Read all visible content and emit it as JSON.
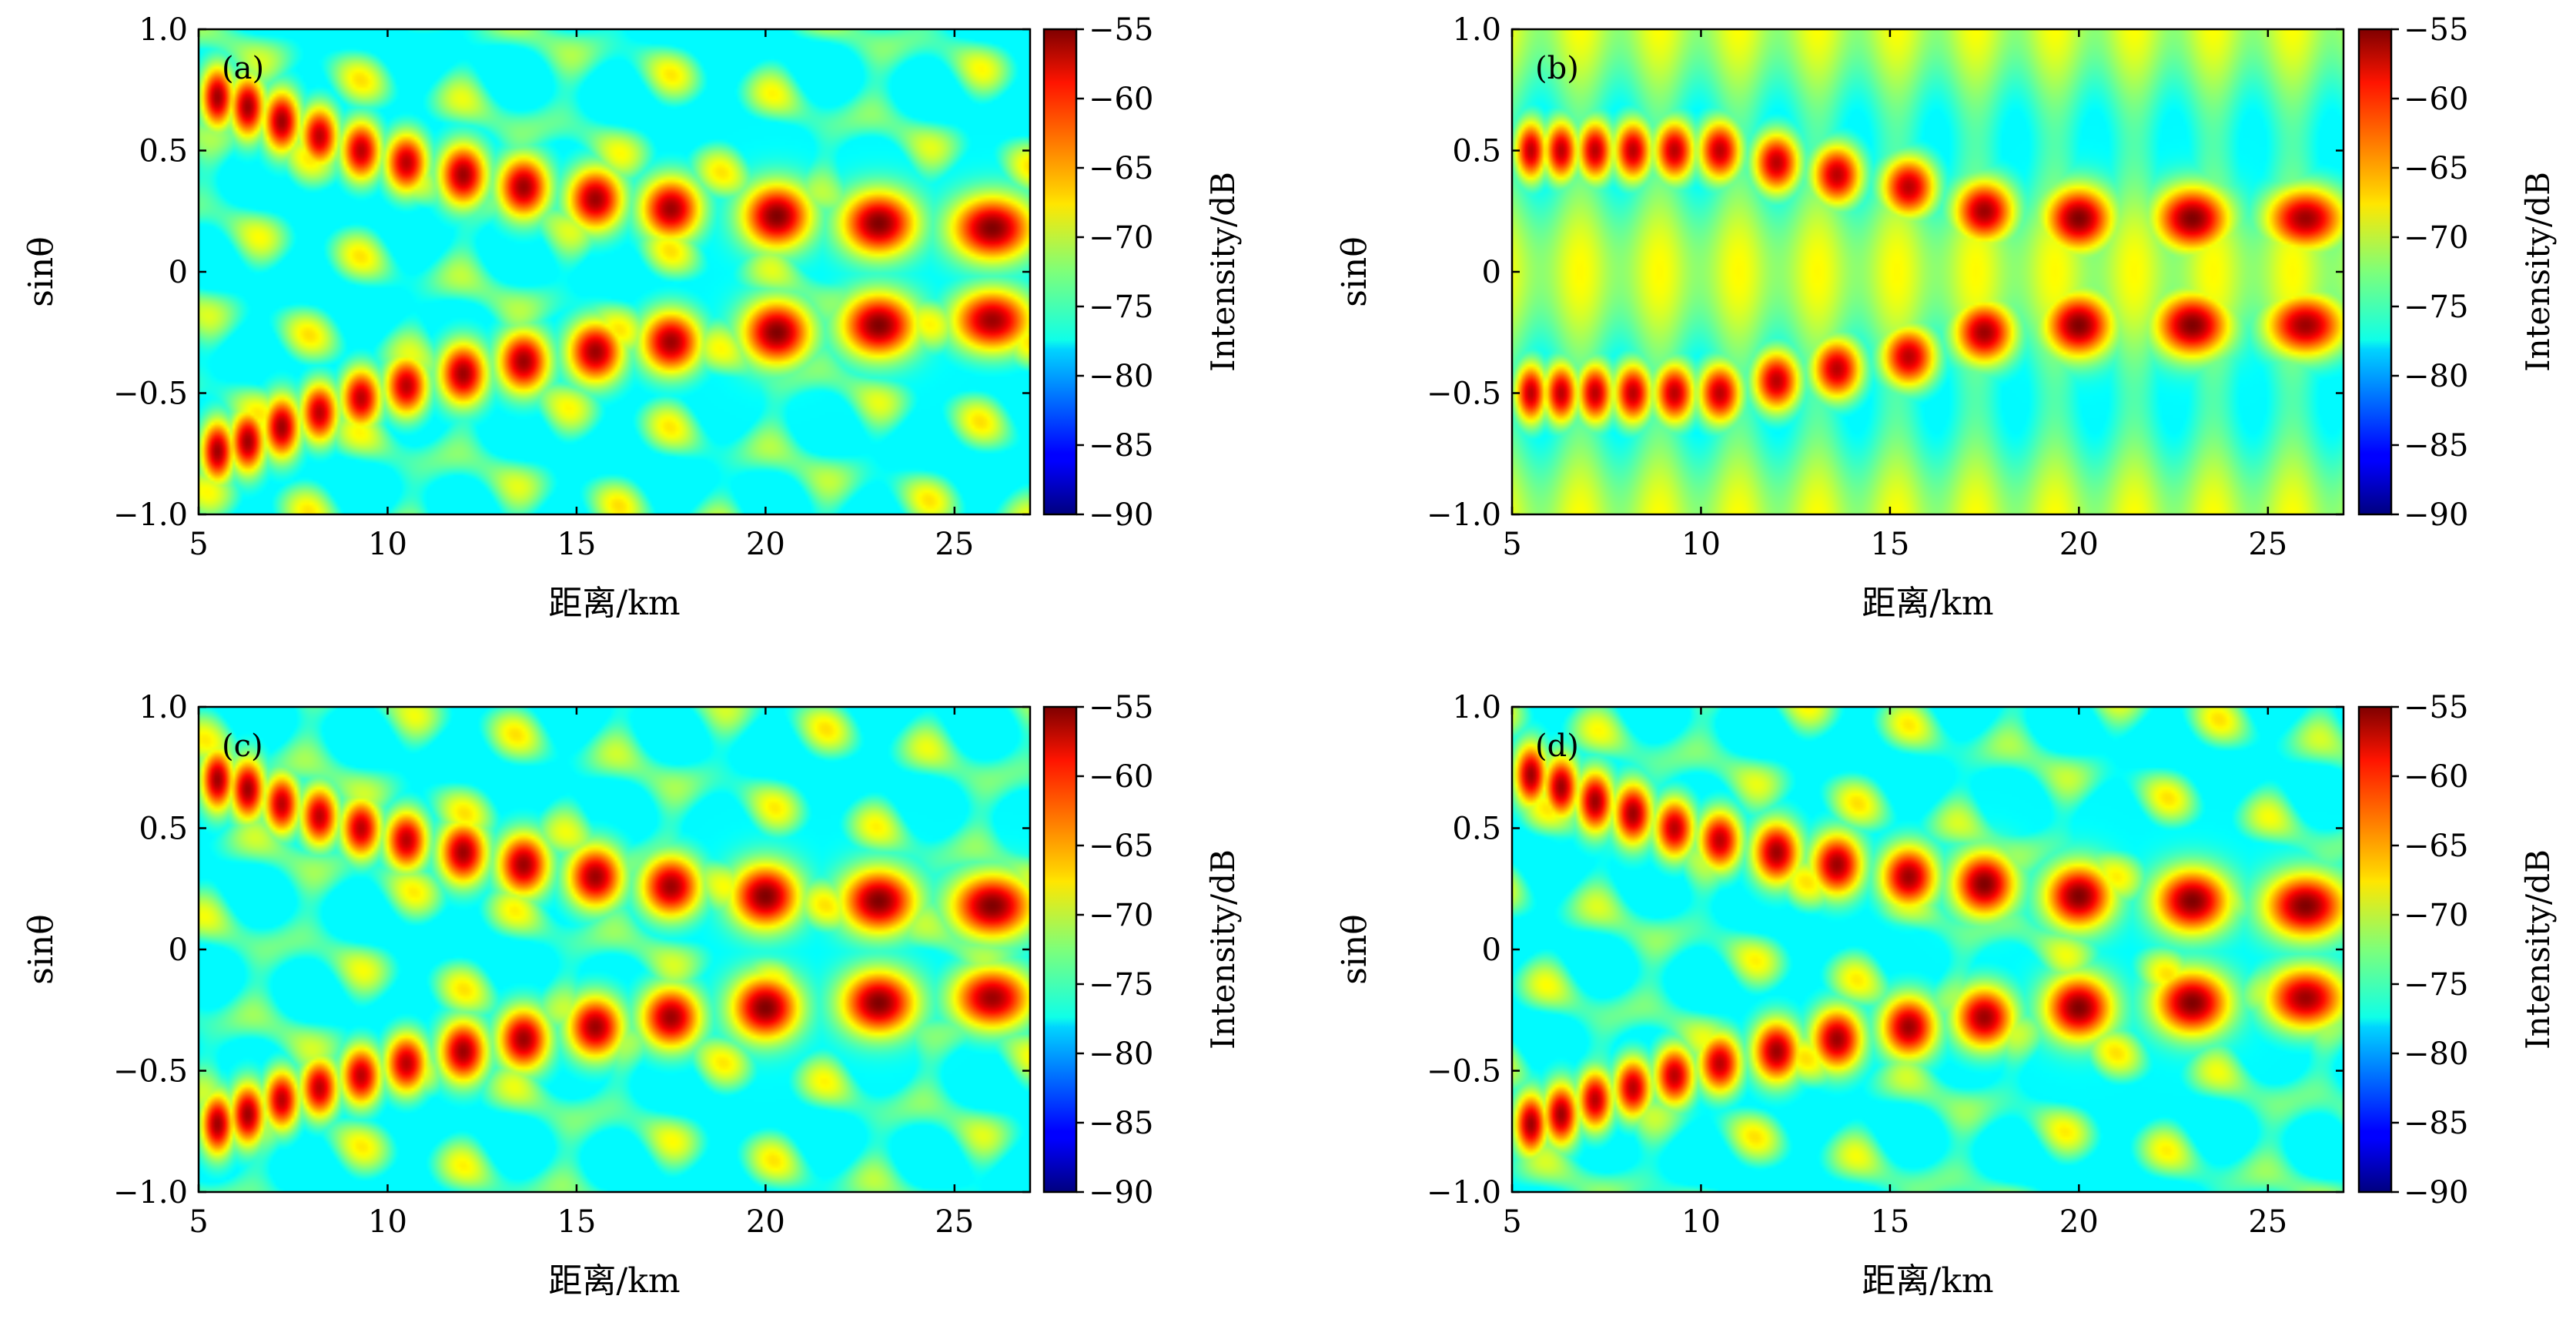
{
  "chart_data": [
    {
      "type": "heatmap",
      "panel_label": "(a)",
      "xlabel": "距离/km",
      "ylabel": "sinθ",
      "xlim": [
        5,
        27
      ],
      "ylim": [
        -1.0,
        1.0
      ],
      "xticks": [
        "5",
        "10",
        "15",
        "20",
        "25"
      ],
      "yticks": [
        "1.0",
        "0.5",
        "0",
        "−0.5",
        "−1.0"
      ],
      "colorbar": {
        "label": "Intensity/dB",
        "range": [
          -90,
          -55
        ],
        "ticks": [
          "−55",
          "−60",
          "−65",
          "−70",
          "−75",
          "−80",
          "−85",
          "−90"
        ]
      },
      "lobes": [
        {
          "x": 5.5,
          "y": 0.72,
          "v": -56
        },
        {
          "x": 6.3,
          "y": 0.68,
          "v": -56
        },
        {
          "x": 7.2,
          "y": 0.62,
          "v": -56
        },
        {
          "x": 8.2,
          "y": 0.56,
          "v": -57
        },
        {
          "x": 9.3,
          "y": 0.5,
          "v": -57
        },
        {
          "x": 10.5,
          "y": 0.45,
          "v": -57
        },
        {
          "x": 12.0,
          "y": 0.4,
          "v": -56
        },
        {
          "x": 13.6,
          "y": 0.35,
          "v": -56
        },
        {
          "x": 15.5,
          "y": 0.3,
          "v": -56
        },
        {
          "x": 17.5,
          "y": 0.26,
          "v": -56
        },
        {
          "x": 20.3,
          "y": 0.23,
          "v": -55
        },
        {
          "x": 23.0,
          "y": 0.2,
          "v": -55
        },
        {
          "x": 26.0,
          "y": 0.18,
          "v": -55
        },
        {
          "x": 5.5,
          "y": -0.74,
          "v": -56
        },
        {
          "x": 6.3,
          "y": -0.7,
          "v": -56
        },
        {
          "x": 7.2,
          "y": -0.64,
          "v": -56
        },
        {
          "x": 8.2,
          "y": -0.58,
          "v": -57
        },
        {
          "x": 9.3,
          "y": -0.52,
          "v": -57
        },
        {
          "x": 10.5,
          "y": -0.47,
          "v": -57
        },
        {
          "x": 12.0,
          "y": -0.42,
          "v": -56
        },
        {
          "x": 13.6,
          "y": -0.37,
          "v": -56
        },
        {
          "x": 15.5,
          "y": -0.33,
          "v": -56
        },
        {
          "x": 17.5,
          "y": -0.29,
          "v": -56
        },
        {
          "x": 20.3,
          "y": -0.25,
          "v": -55
        },
        {
          "x": 23.0,
          "y": -0.22,
          "v": -55
        },
        {
          "x": 26.0,
          "y": -0.2,
          "v": -56
        }
      ]
    },
    {
      "type": "heatmap",
      "panel_label": "(b)",
      "xlabel": "距离/km",
      "ylabel": "sinθ",
      "xlim": [
        5,
        27
      ],
      "ylim": [
        -1.0,
        1.0
      ],
      "xticks": [
        "5",
        "10",
        "15",
        "20",
        "25"
      ],
      "yticks": [
        "1.0",
        "0.5",
        "0",
        "−0.5",
        "−1.0"
      ],
      "colorbar": {
        "label": "Intensity/dB",
        "range": [
          -90,
          -55
        ],
        "ticks": [
          "−55",
          "−60",
          "−65",
          "−70",
          "−75",
          "−80",
          "−85",
          "−90"
        ]
      },
      "lobes": [
        {
          "x": 5.5,
          "y": 0.5,
          "v": -57
        },
        {
          "x": 6.3,
          "y": 0.5,
          "v": -57
        },
        {
          "x": 7.2,
          "y": 0.5,
          "v": -57
        },
        {
          "x": 8.2,
          "y": 0.5,
          "v": -57
        },
        {
          "x": 9.3,
          "y": 0.5,
          "v": -57
        },
        {
          "x": 10.5,
          "y": 0.5,
          "v": -57
        },
        {
          "x": 12.0,
          "y": 0.45,
          "v": -57
        },
        {
          "x": 13.6,
          "y": 0.4,
          "v": -57
        },
        {
          "x": 15.5,
          "y": 0.35,
          "v": -57
        },
        {
          "x": 17.5,
          "y": 0.25,
          "v": -56
        },
        {
          "x": 20.0,
          "y": 0.22,
          "v": -55
        },
        {
          "x": 23.0,
          "y": 0.22,
          "v": -55
        },
        {
          "x": 26.0,
          "y": 0.22,
          "v": -56
        },
        {
          "x": 5.5,
          "y": -0.5,
          "v": -57
        },
        {
          "x": 6.3,
          "y": -0.5,
          "v": -57
        },
        {
          "x": 7.2,
          "y": -0.5,
          "v": -57
        },
        {
          "x": 8.2,
          "y": -0.5,
          "v": -57
        },
        {
          "x": 9.3,
          "y": -0.5,
          "v": -57
        },
        {
          "x": 10.5,
          "y": -0.5,
          "v": -57
        },
        {
          "x": 12.0,
          "y": -0.45,
          "v": -57
        },
        {
          "x": 13.6,
          "y": -0.4,
          "v": -57
        },
        {
          "x": 15.5,
          "y": -0.35,
          "v": -57
        },
        {
          "x": 17.5,
          "y": -0.25,
          "v": -56
        },
        {
          "x": 20.0,
          "y": -0.22,
          "v": -55
        },
        {
          "x": 23.0,
          "y": -0.22,
          "v": -55
        },
        {
          "x": 26.0,
          "y": -0.22,
          "v": -56
        }
      ]
    },
    {
      "type": "heatmap",
      "panel_label": "(c)",
      "xlabel": "距离/km",
      "ylabel": "sinθ",
      "xlim": [
        5,
        27
      ],
      "ylim": [
        -1.0,
        1.0
      ],
      "xticks": [
        "5",
        "10",
        "15",
        "20",
        "25"
      ],
      "yticks": [
        "1.0",
        "0.5",
        "0",
        "−0.5",
        "−1.0"
      ],
      "colorbar": {
        "label": "Intensity/dB",
        "range": [
          -90,
          -55
        ],
        "ticks": [
          "−55",
          "−60",
          "−65",
          "−70",
          "−75",
          "−80",
          "−85",
          "−90"
        ]
      },
      "lobes": [
        {
          "x": 5.5,
          "y": 0.7,
          "v": -56
        },
        {
          "x": 6.3,
          "y": 0.66,
          "v": -56
        },
        {
          "x": 7.2,
          "y": 0.6,
          "v": -57
        },
        {
          "x": 8.2,
          "y": 0.55,
          "v": -57
        },
        {
          "x": 9.3,
          "y": 0.5,
          "v": -57
        },
        {
          "x": 10.5,
          "y": 0.45,
          "v": -57
        },
        {
          "x": 12.0,
          "y": 0.4,
          "v": -56
        },
        {
          "x": 13.6,
          "y": 0.35,
          "v": -56
        },
        {
          "x": 15.5,
          "y": 0.3,
          "v": -56
        },
        {
          "x": 17.5,
          "y": 0.26,
          "v": -56
        },
        {
          "x": 20.0,
          "y": 0.22,
          "v": -55
        },
        {
          "x": 23.0,
          "y": 0.2,
          "v": -55
        },
        {
          "x": 26.0,
          "y": 0.18,
          "v": -55
        },
        {
          "x": 5.5,
          "y": -0.72,
          "v": -56
        },
        {
          "x": 6.3,
          "y": -0.68,
          "v": -56
        },
        {
          "x": 7.2,
          "y": -0.62,
          "v": -57
        },
        {
          "x": 8.2,
          "y": -0.57,
          "v": -57
        },
        {
          "x": 9.3,
          "y": -0.52,
          "v": -57
        },
        {
          "x": 10.5,
          "y": -0.47,
          "v": -57
        },
        {
          "x": 12.0,
          "y": -0.42,
          "v": -56
        },
        {
          "x": 13.6,
          "y": -0.37,
          "v": -56
        },
        {
          "x": 15.5,
          "y": -0.32,
          "v": -56
        },
        {
          "x": 17.5,
          "y": -0.28,
          "v": -56
        },
        {
          "x": 20.0,
          "y": -0.24,
          "v": -55
        },
        {
          "x": 23.0,
          "y": -0.22,
          "v": -55
        },
        {
          "x": 26.0,
          "y": -0.2,
          "v": -56
        }
      ]
    },
    {
      "type": "heatmap",
      "panel_label": "(d)",
      "xlabel": "距离/km",
      "ylabel": "sinθ",
      "xlim": [
        5,
        27
      ],
      "ylim": [
        -1.0,
        1.0
      ],
      "xticks": [
        "5",
        "10",
        "15",
        "20",
        "25"
      ],
      "yticks": [
        "1.0",
        "0.5",
        "0",
        "−0.5",
        "−1.0"
      ],
      "colorbar": {
        "label": "Intensity/dB",
        "range": [
          -90,
          -55
        ],
        "ticks": [
          "−55",
          "−60",
          "−65",
          "−70",
          "−75",
          "−80",
          "−85",
          "−90"
        ]
      },
      "lobes": [
        {
          "x": 5.5,
          "y": 0.72,
          "v": -56
        },
        {
          "x": 6.3,
          "y": 0.67,
          "v": -56
        },
        {
          "x": 7.2,
          "y": 0.61,
          "v": -56
        },
        {
          "x": 8.2,
          "y": 0.56,
          "v": -56
        },
        {
          "x": 9.3,
          "y": 0.5,
          "v": -57
        },
        {
          "x": 10.5,
          "y": 0.45,
          "v": -57
        },
        {
          "x": 12.0,
          "y": 0.4,
          "v": -56
        },
        {
          "x": 13.6,
          "y": 0.35,
          "v": -56
        },
        {
          "x": 15.5,
          "y": 0.3,
          "v": -56
        },
        {
          "x": 17.5,
          "y": 0.27,
          "v": -55
        },
        {
          "x": 20.0,
          "y": 0.22,
          "v": -55
        },
        {
          "x": 23.0,
          "y": 0.2,
          "v": -55
        },
        {
          "x": 26.0,
          "y": 0.18,
          "v": -55
        },
        {
          "x": 5.5,
          "y": -0.72,
          "v": -56
        },
        {
          "x": 6.3,
          "y": -0.68,
          "v": -56
        },
        {
          "x": 7.2,
          "y": -0.62,
          "v": -57
        },
        {
          "x": 8.2,
          "y": -0.57,
          "v": -57
        },
        {
          "x": 9.3,
          "y": -0.52,
          "v": -57
        },
        {
          "x": 10.5,
          "y": -0.47,
          "v": -57
        },
        {
          "x": 12.0,
          "y": -0.42,
          "v": -56
        },
        {
          "x": 13.6,
          "y": -0.37,
          "v": -56
        },
        {
          "x": 15.5,
          "y": -0.32,
          "v": -56
        },
        {
          "x": 17.5,
          "y": -0.28,
          "v": -56
        },
        {
          "x": 20.0,
          "y": -0.24,
          "v": -55
        },
        {
          "x": 23.0,
          "y": -0.22,
          "v": -55
        },
        {
          "x": 26.0,
          "y": -0.2,
          "v": -56
        }
      ]
    }
  ]
}
